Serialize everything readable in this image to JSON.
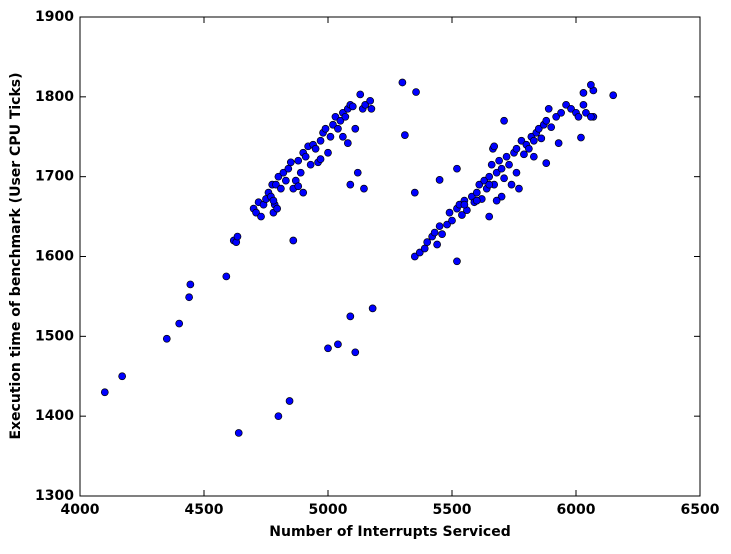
{
  "chart_data": {
    "type": "scatter",
    "xlabel": "Number of Interrupts Serviced",
    "ylabel": "Execution time of benchmark (User CPU Ticks)",
    "color": "#0000ff",
    "xlim": [
      4000,
      6500
    ],
    "xticks": [
      4000,
      4500,
      5000,
      5500,
      6000,
      6500
    ],
    "ylim": [
      1300,
      1900
    ],
    "yticks": [
      1300,
      1400,
      1500,
      1600,
      1700,
      1800,
      1900
    ],
    "x": [
      4100,
      4170,
      4350,
      4400,
      4440,
      4445,
      4590,
      4620,
      4630,
      4635,
      4640,
      4800,
      4845,
      4860,
      5000,
      5040,
      5090,
      5110,
      5180,
      5090,
      5120,
      5145,
      5080,
      5300,
      5310,
      5355,
      5350,
      5450,
      5520,
      5520,
      5710,
      5650,
      5880,
      5930,
      6020,
      6150,
      6070,
      6060,
      6070,
      6030,
      4700,
      4710,
      4720,
      4730,
      4740,
      4750,
      4760,
      4770,
      4775,
      4780,
      4785,
      4790,
      4800,
      4810,
      4820,
      4830,
      4840,
      4850,
      4860,
      4870,
      4880,
      4890,
      4900,
      4910,
      4920,
      4930,
      4940,
      4950,
      4960,
      4970,
      4980,
      4990,
      5000,
      5010,
      5020,
      5030,
      5040,
      5050,
      5060,
      5070,
      5080,
      5090,
      5100,
      5110,
      5130,
      5140,
      5150,
      5170,
      5175,
      4780,
      4795,
      4880,
      4970,
      4900,
      5060,
      5350,
      5370,
      5390,
      5400,
      5420,
      5430,
      5440,
      5450,
      5460,
      5480,
      5490,
      5500,
      5520,
      5530,
      5540,
      5550,
      5560,
      5580,
      5590,
      5600,
      5610,
      5620,
      5630,
      5640,
      5650,
      5660,
      5665,
      5670,
      5680,
      5690,
      5700,
      5710,
      5720,
      5730,
      5740,
      5750,
      5760,
      5770,
      5780,
      5790,
      5800,
      5810,
      5820,
      5830,
      5840,
      5850,
      5860,
      5870,
      5880,
      5890,
      5900,
      5920,
      5940,
      5960,
      5980,
      6000,
      6010,
      6030,
      6040,
      6060,
      5670,
      5650,
      5700,
      5600,
      5760,
      5830,
      5550,
      5680
    ],
    "y": [
      1430,
      1450,
      1497,
      1516,
      1549,
      1565,
      1575,
      1620,
      1618,
      1625,
      1379,
      1400,
      1419,
      1620,
      1485,
      1490,
      1525,
      1480,
      1535,
      1690,
      1705,
      1685,
      1742,
      1818,
      1752,
      1806,
      1680,
      1696,
      1594,
      1710,
      1770,
      1650,
      1717,
      1742,
      1749,
      1802,
      1808,
      1815,
      1775,
      1805,
      1660,
      1655,
      1668,
      1650,
      1665,
      1672,
      1680,
      1675,
      1690,
      1655,
      1665,
      1690,
      1700,
      1685,
      1705,
      1695,
      1710,
      1718,
      1685,
      1695,
      1720,
      1705,
      1730,
      1725,
      1738,
      1715,
      1740,
      1735,
      1718,
      1745,
      1755,
      1760,
      1730,
      1750,
      1765,
      1775,
      1760,
      1770,
      1780,
      1775,
      1785,
      1790,
      1788,
      1760,
      1803,
      1785,
      1790,
      1795,
      1785,
      1670,
      1660,
      1688,
      1722,
      1680,
      1750,
      1600,
      1605,
      1610,
      1618,
      1625,
      1630,
      1615,
      1638,
      1628,
      1640,
      1655,
      1645,
      1660,
      1665,
      1652,
      1670,
      1658,
      1675,
      1668,
      1680,
      1690,
      1672,
      1695,
      1685,
      1700,
      1715,
      1735,
      1690,
      1705,
      1720,
      1710,
      1698,
      1725,
      1715,
      1690,
      1730,
      1735,
      1685,
      1745,
      1728,
      1740,
      1735,
      1750,
      1745,
      1755,
      1760,
      1748,
      1765,
      1770,
      1785,
      1762,
      1775,
      1780,
      1790,
      1785,
      1780,
      1775,
      1790,
      1780,
      1775,
      1738,
      1690,
      1675,
      1670,
      1705,
      1725,
      1665,
      1670
    ]
  }
}
